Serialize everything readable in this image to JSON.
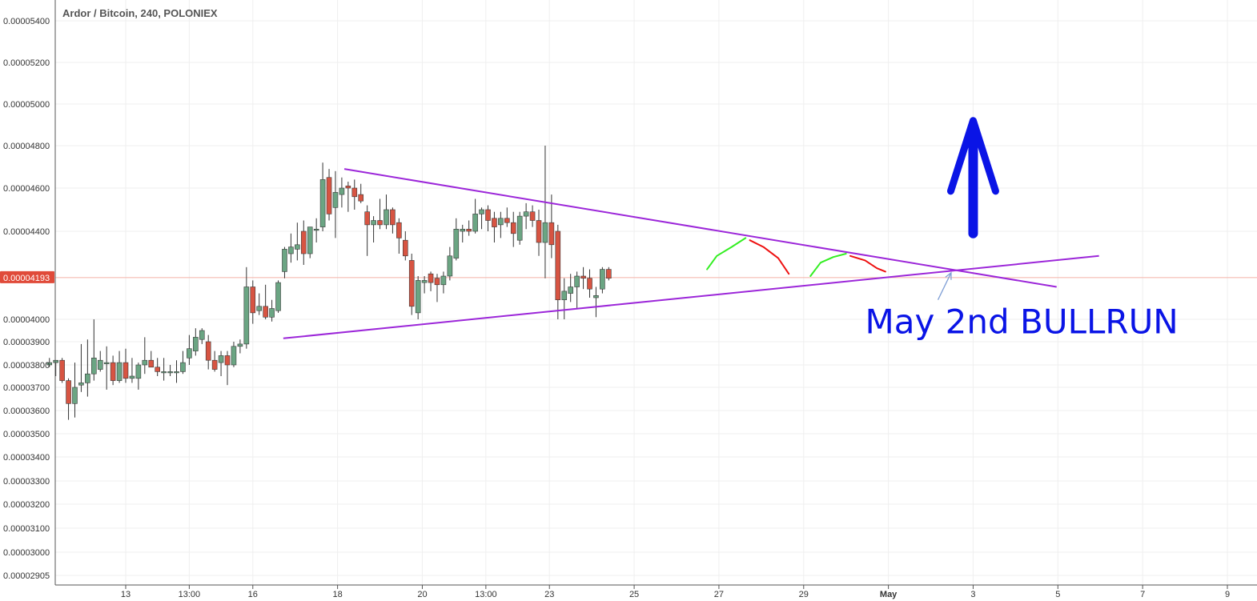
{
  "chart_data": {
    "type": "candlestick",
    "title": "Ardor / Bitcoin, 240, POLONIEX",
    "ylim": [
      2.87e-05,
      5.46e-05
    ],
    "y_ticks": [
      "0.00005400",
      "0.00005200",
      "0.00005000",
      "0.00004800",
      "0.00004600",
      "0.00004400",
      "0.00004000",
      "0.00003900",
      "0.00003800",
      "0.00003700",
      "0.00003600",
      "0.00003500",
      "0.00003400",
      "0.00003300",
      "0.00003200",
      "0.00003100",
      "0.00003000",
      "0.00002905"
    ],
    "x_ticks": [
      {
        "label": "13",
        "day": 13,
        "bold": false
      },
      {
        "label": "13:00",
        "day": 14.5,
        "bold": false
      },
      {
        "label": "16",
        "day": 16,
        "bold": false
      },
      {
        "label": "18",
        "day": 18,
        "bold": false
      },
      {
        "label": "20",
        "day": 20,
        "bold": false
      },
      {
        "label": "13:00",
        "day": 21.5,
        "bold": false
      },
      {
        "label": "23",
        "day": 23,
        "bold": false
      },
      {
        "label": "25",
        "day": 25,
        "bold": false
      },
      {
        "label": "27",
        "day": 27,
        "bold": false
      },
      {
        "label": "29",
        "day": 29,
        "bold": false
      },
      {
        "label": "May",
        "day": 31,
        "bold": true
      },
      {
        "label": "3",
        "day": 33,
        "bold": false
      },
      {
        "label": "5",
        "day": 35,
        "bold": false
      },
      {
        "label": "7",
        "day": 37,
        "bold": false
      },
      {
        "label": "9",
        "day": 39,
        "bold": false
      }
    ],
    "current_price": "0.00004193",
    "current_price_value": 4.193e-05,
    "candles": [
      {
        "day": 11.2,
        "o": 3.8e-05,
        "h": 3.83e-05,
        "l": 3.79e-05,
        "c": 3.81e-05
      },
      {
        "day": 11.35,
        "o": 3.81e-05,
        "h": 3.82e-05,
        "l": 3.75e-05,
        "c": 3.82e-05
      },
      {
        "day": 11.5,
        "o": 3.82e-05,
        "h": 3.83e-05,
        "l": 3.72e-05,
        "c": 3.73e-05
      },
      {
        "day": 11.65,
        "o": 3.73e-05,
        "h": 3.74e-05,
        "l": 3.56e-05,
        "c": 3.63e-05
      },
      {
        "day": 11.8,
        "o": 3.63e-05,
        "h": 3.81e-05,
        "l": 3.57e-05,
        "c": 3.7e-05
      },
      {
        "day": 11.95,
        "o": 3.71e-05,
        "h": 3.89e-05,
        "l": 3.68e-05,
        "c": 3.72e-05
      },
      {
        "day": 12.1,
        "o": 3.72e-05,
        "h": 3.91e-05,
        "l": 3.66e-05,
        "c": 3.76e-05
      },
      {
        "day": 12.25,
        "o": 3.76e-05,
        "h": 4e-05,
        "l": 3.73e-05,
        "c": 3.83e-05
      },
      {
        "day": 12.4,
        "o": 3.78e-05,
        "h": 3.86e-05,
        "l": 3.77e-05,
        "c": 3.82e-05
      },
      {
        "day": 12.55,
        "o": 3.81e-05,
        "h": 3.88e-05,
        "l": 3.69e-05,
        "c": 3.81e-05
      },
      {
        "day": 12.7,
        "o": 3.81e-05,
        "h": 3.84e-05,
        "l": 3.71e-05,
        "c": 3.73e-05
      },
      {
        "day": 12.85,
        "o": 3.73e-05,
        "h": 3.86e-05,
        "l": 3.72e-05,
        "c": 3.81e-05
      },
      {
        "day": 13.0,
        "o": 3.81e-05,
        "h": 3.87e-05,
        "l": 3.72e-05,
        "c": 3.74e-05
      },
      {
        "day": 13.15,
        "o": 3.74e-05,
        "h": 3.83e-05,
        "l": 3.72e-05,
        "c": 3.75e-05
      },
      {
        "day": 13.3,
        "o": 3.74e-05,
        "h": 3.81e-05,
        "l": 3.69e-05,
        "c": 3.8e-05
      },
      {
        "day": 13.45,
        "o": 3.8e-05,
        "h": 3.92e-05,
        "l": 3.76e-05,
        "c": 3.82e-05
      },
      {
        "day": 13.6,
        "o": 3.82e-05,
        "h": 3.86e-05,
        "l": 3.79e-05,
        "c": 3.79e-05
      },
      {
        "day": 13.75,
        "o": 3.79e-05,
        "h": 3.83e-05,
        "l": 3.75e-05,
        "c": 3.77e-05
      },
      {
        "day": 13.9,
        "o": 3.77e-05,
        "h": 3.83e-05,
        "l": 3.73e-05,
        "c": 3.77e-05
      },
      {
        "day": 14.05,
        "o": 3.77e-05,
        "h": 3.8e-05,
        "l": 3.75e-05,
        "c": 3.77e-05
      },
      {
        "day": 14.2,
        "o": 3.77e-05,
        "h": 3.82e-05,
        "l": 3.72e-05,
        "c": 3.77e-05
      },
      {
        "day": 14.35,
        "o": 3.77e-05,
        "h": 3.86e-05,
        "l": 3.76e-05,
        "c": 3.81e-05
      },
      {
        "day": 14.5,
        "o": 3.83e-05,
        "h": 3.93e-05,
        "l": 3.8e-05,
        "c": 3.87e-05
      },
      {
        "day": 14.65,
        "o": 3.86e-05,
        "h": 3.96e-05,
        "l": 3.84e-05,
        "c": 3.92e-05
      },
      {
        "day": 14.8,
        "o": 3.91e-05,
        "h": 3.96e-05,
        "l": 3.89e-05,
        "c": 3.95e-05
      },
      {
        "day": 14.95,
        "o": 3.9e-05,
        "h": 3.93e-05,
        "l": 3.78e-05,
        "c": 3.82e-05
      },
      {
        "day": 15.1,
        "o": 3.82e-05,
        "h": 3.86e-05,
        "l": 3.77e-05,
        "c": 3.78e-05
      },
      {
        "day": 15.25,
        "o": 3.81e-05,
        "h": 3.86e-05,
        "l": 3.75e-05,
        "c": 3.84e-05
      },
      {
        "day": 15.4,
        "o": 3.84e-05,
        "h": 3.86e-05,
        "l": 3.71e-05,
        "c": 3.8e-05
      },
      {
        "day": 15.55,
        "o": 3.8e-05,
        "h": 3.9e-05,
        "l": 3.79e-05,
        "c": 3.88e-05
      },
      {
        "day": 15.7,
        "o": 3.88e-05,
        "h": 3.91e-05,
        "l": 3.85e-05,
        "c": 3.89e-05
      },
      {
        "day": 15.85,
        "o": 3.89e-05,
        "h": 4.24e-05,
        "l": 3.87e-05,
        "c": 4.15e-05
      },
      {
        "day": 16.0,
        "o": 4.15e-05,
        "h": 4.18e-05,
        "l": 3.98e-05,
        "c": 4.03e-05
      },
      {
        "day": 16.15,
        "o": 4.04e-05,
        "h": 4.12e-05,
        "l": 4.02e-05,
        "c": 4.06e-05
      },
      {
        "day": 16.3,
        "o": 4.06e-05,
        "h": 4.16e-05,
        "l": 4e-05,
        "c": 4.01e-05
      },
      {
        "day": 16.45,
        "o": 4.01e-05,
        "h": 4.09e-05,
        "l": 3.99e-05,
        "c": 4.05e-05
      },
      {
        "day": 16.6,
        "o": 4.04e-05,
        "h": 4.18e-05,
        "l": 4.03e-05,
        "c": 4.17e-05
      },
      {
        "day": 16.75,
        "o": 4.22e-05,
        "h": 4.33e-05,
        "l": 4.19e-05,
        "c": 4.32e-05
      },
      {
        "day": 16.9,
        "o": 4.3e-05,
        "h": 4.39e-05,
        "l": 4.26e-05,
        "c": 4.33e-05
      },
      {
        "day": 17.05,
        "o": 4.32e-05,
        "h": 4.44e-05,
        "l": 4.27e-05,
        "c": 4.34e-05
      },
      {
        "day": 17.2,
        "o": 4.4e-05,
        "h": 4.45e-05,
        "l": 4.25e-05,
        "c": 4.3e-05
      },
      {
        "day": 17.35,
        "o": 4.3e-05,
        "h": 4.42e-05,
        "l": 4.28e-05,
        "c": 4.42e-05
      },
      {
        "day": 17.5,
        "o": 4.41e-05,
        "h": 4.46e-05,
        "l": 4.35e-05,
        "c": 4.41e-05
      },
      {
        "day": 17.65,
        "o": 4.42e-05,
        "h": 4.72e-05,
        "l": 4.4e-05,
        "c": 4.64e-05
      },
      {
        "day": 17.8,
        "o": 4.65e-05,
        "h": 4.69e-05,
        "l": 4.45e-05,
        "c": 4.48e-05
      },
      {
        "day": 17.95,
        "o": 4.51e-05,
        "h": 4.68e-05,
        "l": 4.37e-05,
        "c": 4.58e-05
      },
      {
        "day": 18.1,
        "o": 4.57e-05,
        "h": 4.65e-05,
        "l": 4.51e-05,
        "c": 4.6e-05
      },
      {
        "day": 18.25,
        "o": 4.61e-05,
        "h": 4.63e-05,
        "l": 4.49e-05,
        "c": 4.6e-05
      },
      {
        "day": 18.4,
        "o": 4.6e-05,
        "h": 4.64e-05,
        "l": 4.5e-05,
        "c": 4.56e-05
      },
      {
        "day": 18.55,
        "o": 4.57e-05,
        "h": 4.62e-05,
        "l": 4.53e-05,
        "c": 4.54e-05
      },
      {
        "day": 18.7,
        "o": 4.49e-05,
        "h": 4.52e-05,
        "l": 4.29e-05,
        "c": 4.43e-05
      },
      {
        "day": 18.85,
        "o": 4.43e-05,
        "h": 4.47e-05,
        "l": 4.35e-05,
        "c": 4.45e-05
      },
      {
        "day": 19.0,
        "o": 4.45e-05,
        "h": 4.55e-05,
        "l": 4.41e-05,
        "c": 4.43e-05
      },
      {
        "day": 19.15,
        "o": 4.43e-05,
        "h": 4.57e-05,
        "l": 4.41e-05,
        "c": 4.5e-05
      },
      {
        "day": 19.3,
        "o": 4.5e-05,
        "h": 4.51e-05,
        "l": 4.39e-05,
        "c": 4.43e-05
      },
      {
        "day": 19.45,
        "o": 4.44e-05,
        "h": 4.46e-05,
        "l": 4.3e-05,
        "c": 4.37e-05
      },
      {
        "day": 19.6,
        "o": 4.36e-05,
        "h": 4.4e-05,
        "l": 4.27e-05,
        "c": 4.29e-05
      },
      {
        "day": 19.75,
        "o": 4.27e-05,
        "h": 4.3e-05,
        "l": 4.02e-05,
        "c": 4.06e-05
      },
      {
        "day": 19.9,
        "o": 4.03e-05,
        "h": 4.2e-05,
        "l": 4e-05,
        "c": 4.18e-05
      },
      {
        "day": 20.05,
        "o": 4.17e-05,
        "h": 4.2e-05,
        "l": 4.12e-05,
        "c": 4.18e-05
      },
      {
        "day": 20.2,
        "o": 4.21e-05,
        "h": 4.22e-05,
        "l": 4.13e-05,
        "c": 4.17e-05
      },
      {
        "day": 20.35,
        "o": 4.19e-05,
        "h": 4.21e-05,
        "l": 4.08e-05,
        "c": 4.16e-05
      },
      {
        "day": 20.5,
        "o": 4.16e-05,
        "h": 4.22e-05,
        "l": 4.12e-05,
        "c": 4.2e-05
      },
      {
        "day": 20.65,
        "o": 4.2e-05,
        "h": 4.33e-05,
        "l": 4.18e-05,
        "c": 4.29e-05
      },
      {
        "day": 20.8,
        "o": 4.28e-05,
        "h": 4.46e-05,
        "l": 4.27e-05,
        "c": 4.41e-05
      },
      {
        "day": 20.95,
        "o": 4.4e-05,
        "h": 4.43e-05,
        "l": 4.35e-05,
        "c": 4.41e-05
      },
      {
        "day": 21.1,
        "o": 4.41e-05,
        "h": 4.45e-05,
        "l": 4.38e-05,
        "c": 4.4e-05
      },
      {
        "day": 21.25,
        "o": 4.4e-05,
        "h": 4.55e-05,
        "l": 4.39e-05,
        "c": 4.48e-05
      },
      {
        "day": 21.4,
        "o": 4.48e-05,
        "h": 4.51e-05,
        "l": 4.41e-05,
        "c": 4.5e-05
      },
      {
        "day": 21.55,
        "o": 4.5e-05,
        "h": 4.52e-05,
        "l": 4.4e-05,
        "c": 4.45e-05
      },
      {
        "day": 21.7,
        "o": 4.46e-05,
        "h": 4.49e-05,
        "l": 4.35e-05,
        "c": 4.42e-05
      },
      {
        "day": 21.85,
        "o": 4.43e-05,
        "h": 4.49e-05,
        "l": 4.37e-05,
        "c": 4.46e-05
      },
      {
        "day": 22.0,
        "o": 4.46e-05,
        "h": 4.51e-05,
        "l": 4.42e-05,
        "c": 4.44e-05
      },
      {
        "day": 22.15,
        "o": 4.44e-05,
        "h": 4.49e-05,
        "l": 4.33e-05,
        "c": 4.39e-05
      },
      {
        "day": 22.3,
        "o": 4.36e-05,
        "h": 4.49e-05,
        "l": 4.34e-05,
        "c": 4.47e-05
      },
      {
        "day": 22.45,
        "o": 4.47e-05,
        "h": 4.53e-05,
        "l": 4.41e-05,
        "c": 4.49e-05
      },
      {
        "day": 22.6,
        "o": 4.49e-05,
        "h": 4.52e-05,
        "l": 4.42e-05,
        "c": 4.45e-05
      },
      {
        "day": 22.75,
        "o": 4.45e-05,
        "h": 4.5e-05,
        "l": 4.29e-05,
        "c": 4.35e-05
      },
      {
        "day": 22.9,
        "o": 4.35e-05,
        "h": 4.8e-05,
        "l": 4.19e-05,
        "c": 4.44e-05
      },
      {
        "day": 23.05,
        "o": 4.44e-05,
        "h": 4.57e-05,
        "l": 4.28e-05,
        "c": 4.34e-05
      },
      {
        "day": 23.2,
        "o": 4.4e-05,
        "h": 4.43e-05,
        "l": 4e-05,
        "c": 4.09e-05
      },
      {
        "day": 23.35,
        "o": 4.09e-05,
        "h": 4.19e-05,
        "l": 4e-05,
        "c": 4.13e-05
      },
      {
        "day": 23.5,
        "o": 4.12e-05,
        "h": 4.21e-05,
        "l": 4.08e-05,
        "c": 4.15e-05
      },
      {
        "day": 23.65,
        "o": 4.15e-05,
        "h": 4.22e-05,
        "l": 4.05e-05,
        "c": 4.2e-05
      },
      {
        "day": 23.8,
        "o": 4.2e-05,
        "h": 4.24e-05,
        "l": 4.14e-05,
        "c": 4.19e-05
      },
      {
        "day": 23.95,
        "o": 4.19e-05,
        "h": 4.23e-05,
        "l": 4.1e-05,
        "c": 4.14e-05
      },
      {
        "day": 24.1,
        "o": 4.1e-05,
        "h": 4.15e-05,
        "l": 4.01e-05,
        "c": 4.11e-05
      },
      {
        "day": 24.25,
        "o": 4.14e-05,
        "h": 4.24e-05,
        "l": 4.12e-05,
        "c": 4.23e-05
      },
      {
        "day": 24.4,
        "o": 4.23e-05,
        "h": 4.24e-05,
        "l": 4.18e-05,
        "c": 4.19e-05
      }
    ],
    "trendlines": [
      {
        "name": "upper-resistance",
        "color": "#9c27d9",
        "from": {
          "day": 18.16,
          "price": 4.69e-05
        },
        "to": {
          "day": 34.97,
          "price": 4.15e-05
        }
      },
      {
        "name": "lower-support",
        "color": "#9c27d9",
        "from": {
          "day": 16.72,
          "price": 3.915e-05
        },
        "to": {
          "day": 35.97,
          "price": 4.29e-05
        }
      }
    ],
    "projection_strokes": [
      {
        "name": "projection-green-1",
        "color": "#33ee22",
        "points": [
          [
            26.72,
            4.23e-05
          ],
          [
            26.95,
            4.29e-05
          ],
          [
            27.3,
            4.33e-05
          ],
          [
            27.63,
            4.37e-05
          ]
        ]
      },
      {
        "name": "projection-red-1",
        "color": "#ee1111",
        "points": [
          [
            27.73,
            4.36e-05
          ],
          [
            28.05,
            4.33e-05
          ],
          [
            28.4,
            4.28e-05
          ],
          [
            28.65,
            4.21e-05
          ]
        ]
      },
      {
        "name": "projection-green-2",
        "color": "#33ee22",
        "points": [
          [
            29.16,
            4.2e-05
          ],
          [
            29.4,
            4.26e-05
          ],
          [
            29.7,
            4.285e-05
          ],
          [
            30.0,
            4.3e-05
          ]
        ]
      },
      {
        "name": "projection-red-2",
        "color": "#ee1111",
        "points": [
          [
            30.1,
            4.29e-05
          ],
          [
            30.45,
            4.27e-05
          ],
          [
            30.73,
            4.235e-05
          ],
          [
            30.93,
            4.22e-05
          ]
        ]
      }
    ],
    "arrows": [
      {
        "name": "big-up-arrow",
        "color": "#0a14e6",
        "from": {
          "day": 33.0,
          "price": 4.39e-05
        },
        "to": {
          "day": 33.0,
          "price": 4.92e-05
        }
      },
      {
        "name": "pointer-arrow",
        "color": "#7f9fd6",
        "from": {
          "day": 32.17,
          "price": 4.09e-05
        },
        "to": {
          "day": 32.48,
          "price": 4.215e-05
        }
      }
    ],
    "annotations": [
      {
        "name": "may-2nd-bullrun-label",
        "text": "May 2nd BULLRUN",
        "day": 30.45,
        "price": 4.01e-05
      }
    ],
    "colors": {
      "bull_body": "#6ba583",
      "bear_body": "#d75442",
      "wick": "#333333",
      "grid": "#efefef",
      "axis": "#555555",
      "price_line": "#f4b2a8",
      "price_badge": "#e04a39"
    },
    "grid": true
  }
}
